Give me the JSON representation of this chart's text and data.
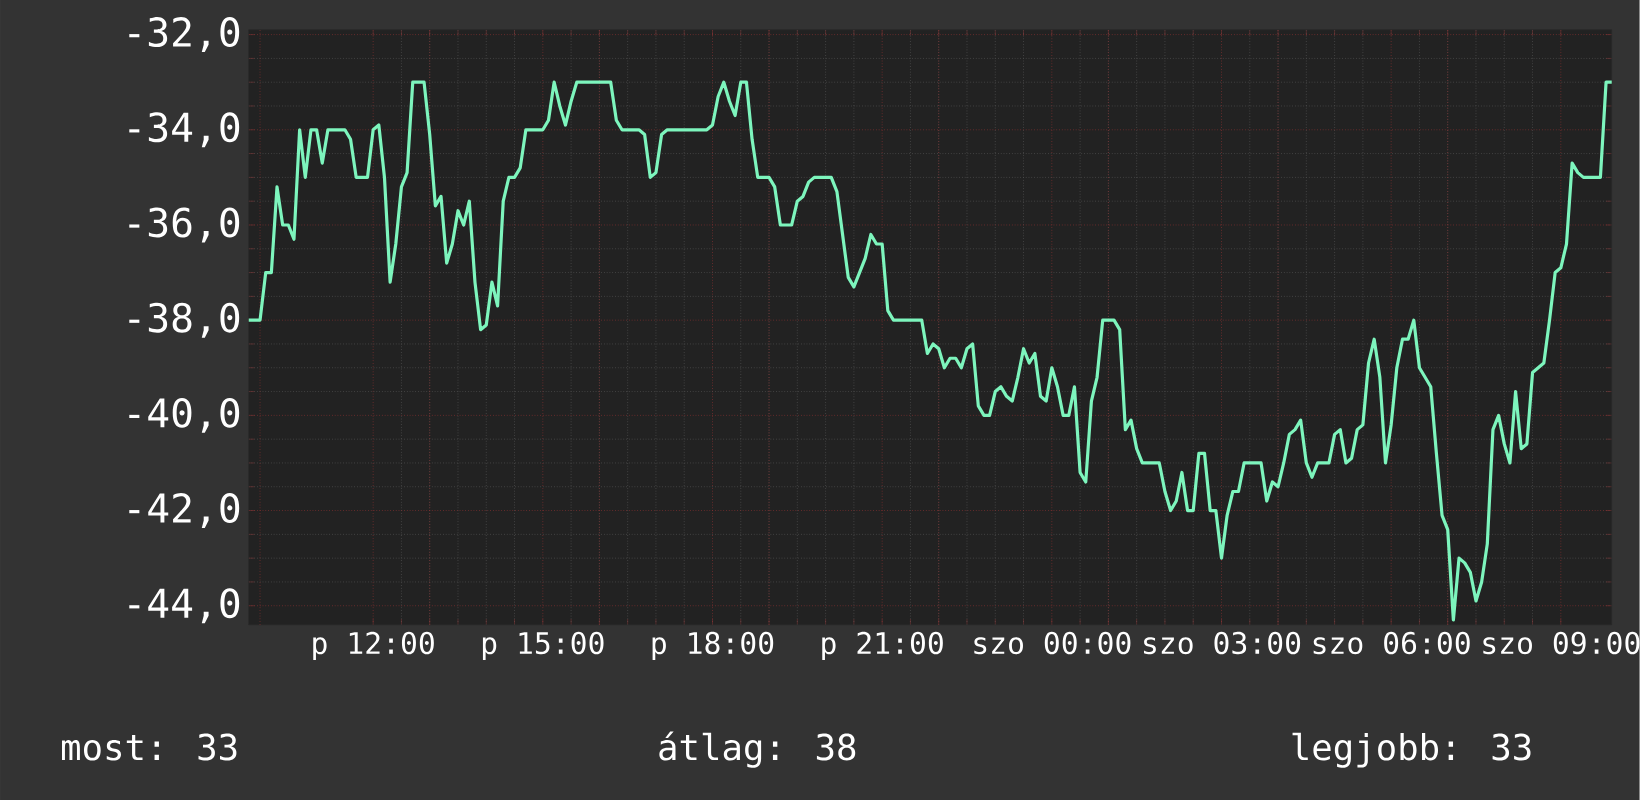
{
  "chart_data": {
    "type": "line",
    "categories": [
      null,
      null,
      null,
      null,
      null,
      null,
      null,
      null,
      null,
      null,
      null,
      null,
      null,
      null,
      null,
      null,
      null,
      null,
      null,
      null,
      null,
      null,
      "p 12:00",
      null,
      null,
      null,
      null,
      null,
      null,
      null,
      null,
      null,
      null,
      null,
      null,
      null,
      null,
      null,
      null,
      null,
      null,
      null,
      null,
      null,
      null,
      null,
      null,
      null,
      null,
      null,
      null,
      null,
      "p 15:00",
      null,
      null,
      null,
      null,
      null,
      null,
      null,
      null,
      null,
      null,
      null,
      null,
      null,
      null,
      null,
      null,
      null,
      null,
      null,
      null,
      null,
      null,
      null,
      null,
      null,
      null,
      null,
      null,
      null,
      "p 18:00",
      null,
      null,
      null,
      null,
      null,
      null,
      null,
      null,
      null,
      null,
      null,
      null,
      null,
      null,
      null,
      null,
      null,
      null,
      null,
      null,
      null,
      null,
      null,
      null,
      null,
      null,
      null,
      null,
      null,
      "p 21:00",
      null,
      null,
      null,
      null,
      null,
      null,
      null,
      null,
      null,
      null,
      null,
      null,
      null,
      null,
      null,
      null,
      null,
      null,
      null,
      null,
      null,
      null,
      null,
      null,
      null,
      null,
      null,
      null,
      null,
      "szo 00:00",
      null,
      null,
      null,
      null,
      null,
      null,
      null,
      null,
      null,
      null,
      null,
      null,
      null,
      null,
      null,
      null,
      null,
      null,
      null,
      null,
      null,
      null,
      null,
      null,
      null,
      null,
      null,
      null,
      null,
      "szo 03:00",
      null,
      null,
      null,
      null,
      null,
      null,
      null,
      null,
      null,
      null,
      null,
      null,
      null,
      null,
      null,
      null,
      null,
      null,
      null,
      null,
      null,
      null,
      null,
      null,
      null,
      null,
      null,
      null,
      null,
      "szo 06:00",
      null,
      null,
      null,
      null,
      null,
      null,
      null,
      null,
      null,
      null,
      null,
      null,
      null,
      null,
      null,
      null,
      null,
      null,
      null,
      null,
      null,
      null,
      null,
      null,
      null,
      null,
      null,
      null,
      null,
      "szo 09:00",
      null,
      null,
      null,
      null,
      null,
      null,
      null,
      null,
      null
    ],
    "series": [
      {
        "color": "#7df5bd",
        "values": [
          -38,
          -38,
          -38,
          -37,
          -37,
          -35.2,
          -36,
          -36,
          -36.3,
          -34,
          -35,
          -34,
          -34,
          -34.7,
          -34,
          -34,
          -34,
          -34,
          -34.2,
          -35,
          -35,
          -35,
          -34,
          -33.9,
          -35,
          -37.2,
          -36.4,
          -35.2,
          -34.9,
          -33,
          -33,
          -33,
          -34.1,
          -35.6,
          -35.4,
          -36.8,
          -36.4,
          -35.7,
          -36,
          -35.5,
          -37.2,
          -38.2,
          -38.1,
          -37.2,
          -37.7,
          -35.5,
          -35,
          -35,
          -34.8,
          -34,
          -34,
          -34,
          -34,
          -33.8,
          -33,
          -33.5,
          -33.9,
          -33.4,
          -33,
          -33,
          -33,
          -33,
          -33,
          -33,
          -33,
          -33.8,
          -34,
          -34,
          -34,
          -34,
          -34.1,
          -35,
          -34.9,
          -34.1,
          -34,
          -34,
          -34,
          -34,
          -34,
          -34,
          -34,
          -34,
          -33.9,
          -33.3,
          -33,
          -33.4,
          -33.7,
          -33,
          -33,
          -34.2,
          -35,
          -35,
          -35,
          -35.2,
          -36,
          -36,
          -36,
          -35.5,
          -35.4,
          -35.1,
          -35,
          -35,
          -35,
          -35,
          -35.3,
          -36.2,
          -37.1,
          -37.3,
          -37,
          -36.7,
          -36.2,
          -36.4,
          -36.4,
          -37.8,
          -38,
          -38,
          -38,
          -38,
          -38,
          -38,
          -38.7,
          -38.5,
          -38.6,
          -39,
          -38.8,
          -38.8,
          -39,
          -38.6,
          -38.5,
          -39.8,
          -40,
          -40,
          -39.5,
          -39.4,
          -39.6,
          -39.7,
          -39.2,
          -38.6,
          -38.9,
          -38.7,
          -39.6,
          -39.7,
          -39,
          -39.4,
          -40,
          -40,
          -39.4,
          -41.2,
          -41.4,
          -39.7,
          -39.2,
          -38,
          -38,
          -38,
          -38.2,
          -40.3,
          -40.1,
          -40.7,
          -41,
          -41,
          -41,
          -41,
          -41.6,
          -42,
          -41.8,
          -41.2,
          -42,
          -42,
          -40.8,
          -40.8,
          -42,
          -42,
          -43,
          -42.1,
          -41.6,
          -41.6,
          -41,
          -41,
          -41,
          -41,
          -41.8,
          -41.4,
          -41.5,
          -41,
          -40.4,
          -40.3,
          -40.1,
          -41,
          -41.3,
          -41,
          -41,
          -41,
          -40.4,
          -40.3,
          -41,
          -40.9,
          -40.3,
          -40.2,
          -38.9,
          -38.4,
          -39.2,
          -41,
          -40.2,
          -39,
          -38.4,
          -38.4,
          -38,
          -39,
          -39.2,
          -39.4,
          -40.8,
          -42.1,
          -42.4,
          -44.3,
          -43,
          -43.1,
          -43.3,
          -43.9,
          -43.5,
          -42.7,
          -40.3,
          -40,
          -40.6,
          -41,
          -39.5,
          -40.7,
          -40.6,
          -39.1,
          -39,
          -38.9,
          -38,
          -37,
          -36.9,
          -36.4,
          -34.7,
          -34.9,
          -35,
          -35,
          -35,
          -35,
          -33,
          -33
        ]
      }
    ],
    "ylim": [
      -44.4,
      -31.9
    ],
    "yticks": [
      {
        "value": -32,
        "label": "-32,0"
      },
      {
        "value": -34,
        "label": "-34,0"
      },
      {
        "value": -36,
        "label": "-36,0"
      },
      {
        "value": -38,
        "label": "-38,0"
      },
      {
        "value": -40,
        "label": "-40,0"
      },
      {
        "value": -42,
        "label": "-42,0"
      },
      {
        "value": -44,
        "label": "-44,0"
      }
    ],
    "grid": true,
    "annotations": [
      "most: 33",
      "átlag: 38",
      "legjobb: 33"
    ]
  }
}
